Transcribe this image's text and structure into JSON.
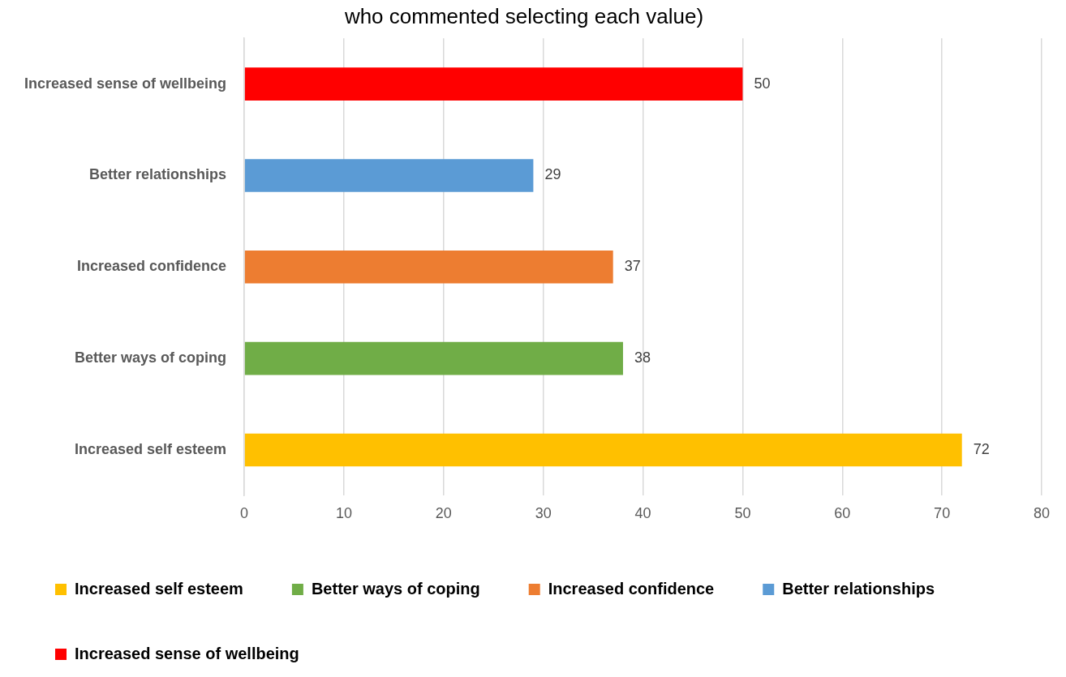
{
  "chart_data": {
    "type": "bar",
    "orientation": "horizontal",
    "stacked": true,
    "title": "who commented selecting each value)",
    "categories": [
      "Increased sense of wellbeing",
      "Better relationships",
      "Increased confidence",
      "Better ways of coping",
      "Increased self esteem"
    ],
    "series": [
      {
        "name": "Increased self esteem",
        "color": "#ffc000",
        "values": [
          null,
          null,
          null,
          null,
          72
        ]
      },
      {
        "name": "Better ways of coping",
        "color": "#70ad47",
        "values": [
          null,
          null,
          null,
          38,
          null
        ]
      },
      {
        "name": "Increased confidence",
        "color": "#ed7d31",
        "values": [
          null,
          null,
          37,
          null,
          null
        ]
      },
      {
        "name": "Better relationships",
        "color": "#5b9bd5",
        "values": [
          null,
          29,
          null,
          null,
          null
        ]
      },
      {
        "name": "Increased sense of wellbeing",
        "color": "#ff0000",
        "values": [
          50,
          null,
          null,
          null,
          null
        ]
      }
    ],
    "xlim": [
      0,
      80
    ],
    "xticks": [
      0,
      10,
      20,
      30,
      40,
      50,
      60,
      70,
      80
    ],
    "grid": "x",
    "legend": "bottom",
    "data_labels": true
  }
}
